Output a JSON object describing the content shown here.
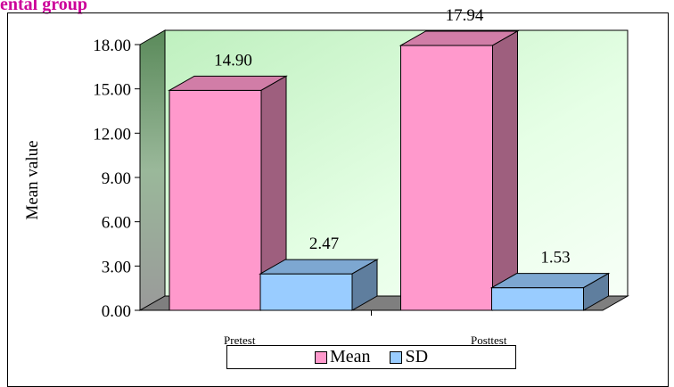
{
  "heading": "ental group",
  "chart_data": {
    "type": "bar",
    "categories": [
      "Pretest",
      "Posttest"
    ],
    "series": [
      {
        "name": "Mean",
        "values": [
          14.9,
          17.94
        ],
        "labels": [
          "14.90",
          "17.94"
        ],
        "color": "#ff99cc"
      },
      {
        "name": "SD",
        "values": [
          2.47,
          1.53
        ],
        "labels": [
          "2.47",
          "1.53"
        ],
        "color": "#99ccff"
      }
    ],
    "ylabel": "Mean value",
    "ylim": [
      0,
      18
    ],
    "yticks": [
      "0.00",
      "3.00",
      "6.00",
      "9.00",
      "12.00",
      "15.00",
      "18.00"
    ],
    "three_d": true,
    "wall_color": "#ccffcc",
    "legend_position": "bottom"
  }
}
